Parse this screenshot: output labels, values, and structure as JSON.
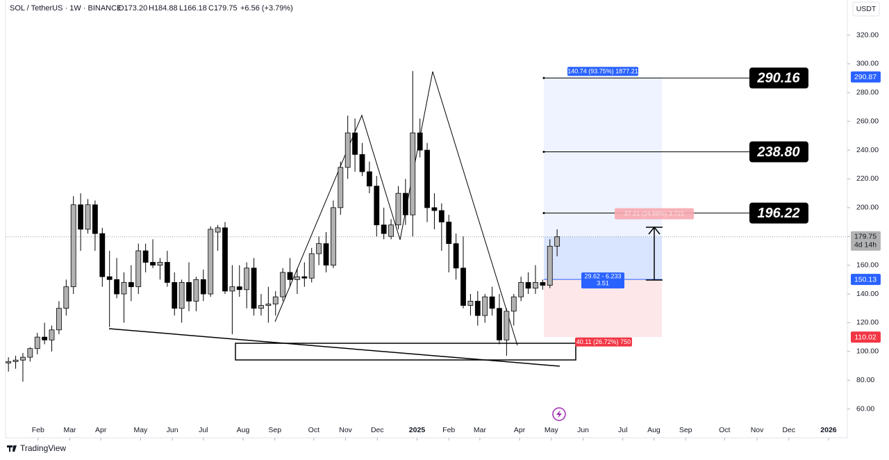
{
  "chart_data": {
    "type": "candlestick",
    "title": "SOL / TetherUS · 1W · BINANCE",
    "ohlc_labels": [
      "O173.20",
      "H184.88",
      "L166.18",
      "C179.75"
    ],
    "change_label": "+6.56 (+3.79%)",
    "currency": "USDT",
    "brand": "TradingView",
    "up_color": "#b2b2b2",
    "down_color": "#000000",
    "xlim": [
      -0.4,
      116.2
    ],
    "xticks": [
      {
        "value": 4.1,
        "label": "Feb"
      },
      {
        "value": 8.5,
        "label": "Mar"
      },
      {
        "value": 12.8,
        "label": "Apr"
      },
      {
        "value": 18.3,
        "label": "May"
      },
      {
        "value": 22.7,
        "label": "Jun"
      },
      {
        "value": 27.0,
        "label": "Jul"
      },
      {
        "value": 32.5,
        "label": "Aug"
      },
      {
        "value": 36.9,
        "label": "Sep"
      },
      {
        "value": 42.3,
        "label": "Oct"
      },
      {
        "value": 46.7,
        "label": "Nov"
      },
      {
        "value": 51.1,
        "label": "Dec"
      },
      {
        "value": 56.6,
        "label": "2025"
      },
      {
        "value": 61.0,
        "label": "Feb"
      },
      {
        "value": 65.3,
        "label": "Mar"
      },
      {
        "value": 70.8,
        "label": "Apr"
      },
      {
        "value": 75.2,
        "label": "May"
      },
      {
        "value": 79.6,
        "label": "Jun"
      },
      {
        "value": 85.1,
        "label": "Jul"
      },
      {
        "value": 89.4,
        "label": "Aug"
      },
      {
        "value": 93.8,
        "label": "Sep"
      },
      {
        "value": 99.2,
        "label": "Oct"
      },
      {
        "value": 103.7,
        "label": "Nov"
      },
      {
        "value": 108.1,
        "label": "Dec"
      },
      {
        "value": 113.6,
        "label": "2026"
      }
    ],
    "ylim": [
      40,
      344.4
    ],
    "yticks": [
      {
        "value": 60,
        "label": "60.00"
      },
      {
        "value": 80,
        "label": "80.00"
      },
      {
        "value": 100,
        "label": "100.00"
      },
      {
        "value": 120,
        "label": "120.00"
      },
      {
        "value": 140,
        "label": "140.00"
      },
      {
        "value": 160,
        "label": "160.00"
      },
      {
        "value": 180,
        "label": "180.00"
      },
      {
        "value": 200,
        "label": "200.00"
      },
      {
        "value": 220,
        "label": "220.00"
      },
      {
        "value": 240,
        "label": "240.00"
      },
      {
        "value": 260,
        "label": "260.00"
      },
      {
        "value": 280,
        "label": "280.00"
      },
      {
        "value": 300,
        "label": "300.00"
      },
      {
        "value": 320,
        "label": "320.00"
      }
    ],
    "candles": [
      {
        "x": 0,
        "open": 92,
        "high": 96,
        "low": 86,
        "close": 93
      },
      {
        "x": 1,
        "open": 93,
        "high": 97,
        "low": 88,
        "close": 94
      },
      {
        "x": 2,
        "open": 94,
        "high": 99,
        "low": 79,
        "close": 96
      },
      {
        "x": 3,
        "open": 96,
        "high": 103,
        "low": 93,
        "close": 102
      },
      {
        "x": 4,
        "open": 102,
        "high": 113,
        "low": 98,
        "close": 110
      },
      {
        "x": 5,
        "open": 110,
        "high": 120,
        "low": 105,
        "close": 108
      },
      {
        "x": 6,
        "open": 108,
        "high": 118,
        "low": 100,
        "close": 115
      },
      {
        "x": 7,
        "open": 115,
        "high": 135,
        "low": 112,
        "close": 130
      },
      {
        "x": 8,
        "open": 130,
        "high": 150,
        "low": 125,
        "close": 145
      },
      {
        "x": 9,
        "open": 145,
        "high": 208,
        "low": 140,
        "close": 202
      },
      {
        "x": 10,
        "open": 202,
        "high": 210,
        "low": 170,
        "close": 185
      },
      {
        "x": 11,
        "open": 185,
        "high": 206,
        "low": 182,
        "close": 202
      },
      {
        "x": 12,
        "open": 202,
        "high": 205,
        "low": 170,
        "close": 182
      },
      {
        "x": 13,
        "open": 182,
        "high": 186,
        "low": 145,
        "close": 152
      },
      {
        "x": 14,
        "open": 152,
        "high": 170,
        "low": 117,
        "close": 150
      },
      {
        "x": 15,
        "open": 150,
        "high": 165,
        "low": 137,
        "close": 140
      },
      {
        "x": 16,
        "open": 140,
        "high": 155,
        "low": 120,
        "close": 148
      },
      {
        "x": 17,
        "open": 148,
        "high": 160,
        "low": 135,
        "close": 145
      },
      {
        "x": 18,
        "open": 145,
        "high": 175,
        "low": 140,
        "close": 170
      },
      {
        "x": 19,
        "open": 170,
        "high": 175,
        "low": 155,
        "close": 162
      },
      {
        "x": 20,
        "open": 162,
        "high": 178,
        "low": 158,
        "close": 160
      },
      {
        "x": 21,
        "open": 160,
        "high": 165,
        "low": 150,
        "close": 162
      },
      {
        "x": 22,
        "open": 162,
        "high": 170,
        "low": 145,
        "close": 148
      },
      {
        "x": 23,
        "open": 148,
        "high": 155,
        "low": 125,
        "close": 130
      },
      {
        "x": 24,
        "open": 130,
        "high": 150,
        "low": 120,
        "close": 148
      },
      {
        "x": 25,
        "open": 148,
        "high": 162,
        "low": 128,
        "close": 135
      },
      {
        "x": 26,
        "open": 135,
        "high": 152,
        "low": 128,
        "close": 150
      },
      {
        "x": 27,
        "open": 150,
        "high": 157,
        "low": 135,
        "close": 140
      },
      {
        "x": 28,
        "open": 140,
        "high": 187,
        "low": 138,
        "close": 185
      },
      {
        "x": 29,
        "open": 183,
        "high": 188,
        "low": 170,
        "close": 186
      },
      {
        "x": 30,
        "open": 186,
        "high": 190,
        "low": 140,
        "close": 142
      },
      {
        "x": 31,
        "open": 142,
        "high": 160,
        "low": 112,
        "close": 145
      },
      {
        "x": 32,
        "open": 145,
        "high": 160,
        "low": 138,
        "close": 143
      },
      {
        "x": 33,
        "open": 143,
        "high": 162,
        "low": 130,
        "close": 158
      },
      {
        "x": 34,
        "open": 158,
        "high": 165,
        "low": 125,
        "close": 130
      },
      {
        "x": 35,
        "open": 130,
        "high": 140,
        "low": 125,
        "close": 132
      },
      {
        "x": 36,
        "open": 132,
        "high": 145,
        "low": 120,
        "close": 133
      },
      {
        "x": 37,
        "open": 133,
        "high": 142,
        "low": 125,
        "close": 138
      },
      {
        "x": 38,
        "open": 138,
        "high": 158,
        "low": 135,
        "close": 155
      },
      {
        "x": 39,
        "open": 155,
        "high": 165,
        "low": 145,
        "close": 150
      },
      {
        "x": 40,
        "open": 150,
        "high": 158,
        "low": 140,
        "close": 152
      },
      {
        "x": 41,
        "open": 152,
        "high": 162,
        "low": 145,
        "close": 151
      },
      {
        "x": 42,
        "open": 151,
        "high": 172,
        "low": 148,
        "close": 168
      },
      {
        "x": 43,
        "open": 168,
        "high": 180,
        "low": 160,
        "close": 175
      },
      {
        "x": 44,
        "open": 175,
        "high": 183,
        "low": 155,
        "close": 160
      },
      {
        "x": 45,
        "open": 160,
        "high": 205,
        "low": 158,
        "close": 200
      },
      {
        "x": 46,
        "open": 200,
        "high": 232,
        "low": 195,
        "close": 228
      },
      {
        "x": 47,
        "open": 228,
        "high": 264,
        "low": 220,
        "close": 252
      },
      {
        "x": 48,
        "open": 252,
        "high": 262,
        "low": 225,
        "close": 237
      },
      {
        "x": 49,
        "open": 237,
        "high": 245,
        "low": 222,
        "close": 225
      },
      {
        "x": 50,
        "open": 225,
        "high": 232,
        "low": 210,
        "close": 215
      },
      {
        "x": 51,
        "open": 215,
        "high": 222,
        "low": 180,
        "close": 188
      },
      {
        "x": 52,
        "open": 188,
        "high": 200,
        "low": 178,
        "close": 182
      },
      {
        "x": 53,
        "open": 180,
        "high": 192,
        "low": 178,
        "close": 188
      },
      {
        "x": 54,
        "open": 188,
        "high": 215,
        "low": 185,
        "close": 210
      },
      {
        "x": 55,
        "open": 210,
        "high": 220,
        "low": 188,
        "close": 195
      },
      {
        "x": 56,
        "open": 195,
        "high": 295,
        "low": 180,
        "close": 252
      },
      {
        "x": 57,
        "open": 252,
        "high": 262,
        "low": 235,
        "close": 240
      },
      {
        "x": 58,
        "open": 240,
        "high": 245,
        "low": 190,
        "close": 200
      },
      {
        "x": 59,
        "open": 200,
        "high": 210,
        "low": 185,
        "close": 198
      },
      {
        "x": 60,
        "open": 198,
        "high": 203,
        "low": 170,
        "close": 190
      },
      {
        "x": 61,
        "open": 190,
        "high": 195,
        "low": 155,
        "close": 175
      },
      {
        "x": 62,
        "open": 175,
        "high": 182,
        "low": 150,
        "close": 158
      },
      {
        "x": 63,
        "open": 158,
        "high": 180,
        "low": 130,
        "close": 132
      },
      {
        "x": 64,
        "open": 132,
        "high": 140,
        "low": 125,
        "close": 135
      },
      {
        "x": 65,
        "open": 135,
        "high": 142,
        "low": 118,
        "close": 125
      },
      {
        "x": 66,
        "open": 125,
        "high": 140,
        "low": 120,
        "close": 138
      },
      {
        "x": 67,
        "open": 138,
        "high": 145,
        "low": 125,
        "close": 130
      },
      {
        "x": 68,
        "open": 130,
        "high": 140,
        "low": 105,
        "close": 108
      },
      {
        "x": 69,
        "open": 108,
        "high": 130,
        "low": 97,
        "close": 128
      },
      {
        "x": 70,
        "open": 128,
        "high": 140,
        "low": 118,
        "close": 138
      },
      {
        "x": 71,
        "open": 138,
        "high": 152,
        "low": 135,
        "close": 148
      },
      {
        "x": 72,
        "open": 148,
        "high": 155,
        "low": 140,
        "close": 144
      },
      {
        "x": 73,
        "open": 144,
        "high": 160,
        "low": 140,
        "close": 148
      },
      {
        "x": 74,
        "open": 148,
        "high": 150,
        "low": 143,
        "close": 146
      },
      {
        "x": 75,
        "open": 146,
        "high": 178,
        "low": 144,
        "close": 173.2
      },
      {
        "x": 76,
        "open": 173.2,
        "high": 184.88,
        "low": 166.18,
        "close": 179.75
      }
    ],
    "levels": [
      {
        "value": 290.16,
        "label": "290.16"
      },
      {
        "value": 238.8,
        "label": "238.80"
      },
      {
        "value": 196.22,
        "label": "196.22"
      }
    ],
    "position": {
      "target": {
        "value": 290.87,
        "label": "290.87"
      },
      "entry": {
        "value": 150.13,
        "label": "150.13"
      },
      "stop": {
        "value": 110.02,
        "label": "110.02"
      },
      "target_text": "140.74 (93.75%) 1877.21",
      "mid_text": "37.21 (24.88%) 3,721",
      "ratio_text": "29.62 - 6.233",
      "ratio_value": "3.51",
      "stop_text": "40.11 (26.72%) 750"
    },
    "last_price": {
      "value": 179.75,
      "label": "179.75"
    },
    "countdown": "4d 14h"
  }
}
